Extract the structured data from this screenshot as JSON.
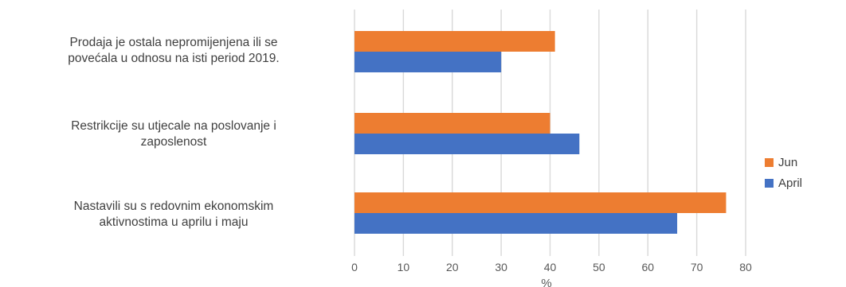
{
  "chart_data": {
    "type": "bar",
    "orientation": "horizontal",
    "categories": [
      [
        "Prodaja je ostala nepromijenjena ili se",
        "povećala u odnosu na isti period 2019."
      ],
      [
        "Restrikcije su utjecale na poslovanje i",
        "zaposlenost"
      ],
      [
        "Nastavili su s redovnim ekonomskim",
        "aktivnostima u aprilu i maju"
      ]
    ],
    "series": [
      {
        "name": "Jun",
        "color": "#ED7D31",
        "values": [
          41,
          40,
          76
        ]
      },
      {
        "name": "April",
        "color": "#4472C4",
        "values": [
          30,
          46,
          66
        ]
      }
    ],
    "xlim": [
      0,
      80
    ],
    "xticks": [
      "0",
      "10",
      "20",
      "30",
      "40",
      "50",
      "60",
      "70",
      "80"
    ],
    "xlabel": "%",
    "grid": true,
    "legend_position": "right"
  }
}
